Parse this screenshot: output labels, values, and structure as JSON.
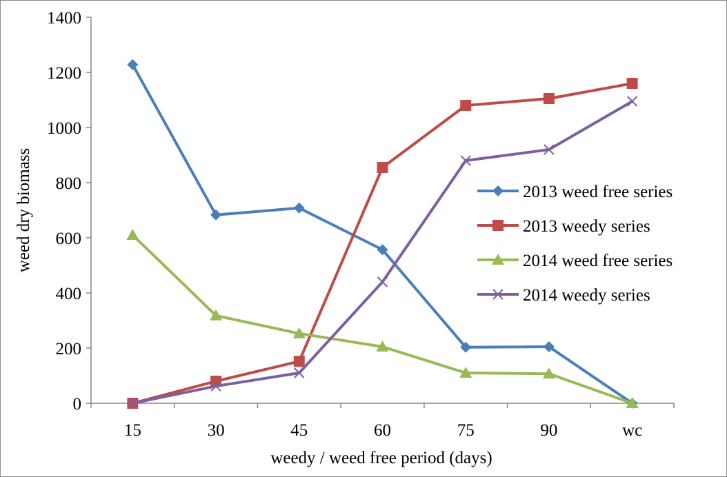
{
  "chart_data": {
    "type": "line",
    "title": "",
    "xlabel": "weedy / weed free period (days)",
    "ylabel": "weed dry biomass",
    "categories": [
      "15",
      "30",
      "45",
      "60",
      "75",
      "90",
      "wc"
    ],
    "ylim": [
      0,
      1400
    ],
    "yticks": [
      0,
      200,
      400,
      600,
      800,
      1000,
      1200,
      1400
    ],
    "grid": false,
    "legend_position": "right",
    "series": [
      {
        "name": "2013 weed free series",
        "color": "#4a7ebb",
        "marker": "diamond",
        "values": [
          1228,
          683,
          708,
          557,
          203,
          205,
          0
        ]
      },
      {
        "name": "2013 weedy series",
        "color": "#be4b48",
        "marker": "square",
        "values": [
          0,
          80,
          152,
          855,
          1080,
          1105,
          1160
        ]
      },
      {
        "name": "2014 weed free series",
        "color": "#98b954",
        "marker": "triangle",
        "values": [
          610,
          318,
          253,
          205,
          110,
          107,
          0
        ]
      },
      {
        "name": "2014 weedy series",
        "color": "#7d5fa0",
        "marker": "x",
        "values": [
          0,
          62,
          110,
          440,
          880,
          920,
          1095
        ]
      }
    ]
  }
}
